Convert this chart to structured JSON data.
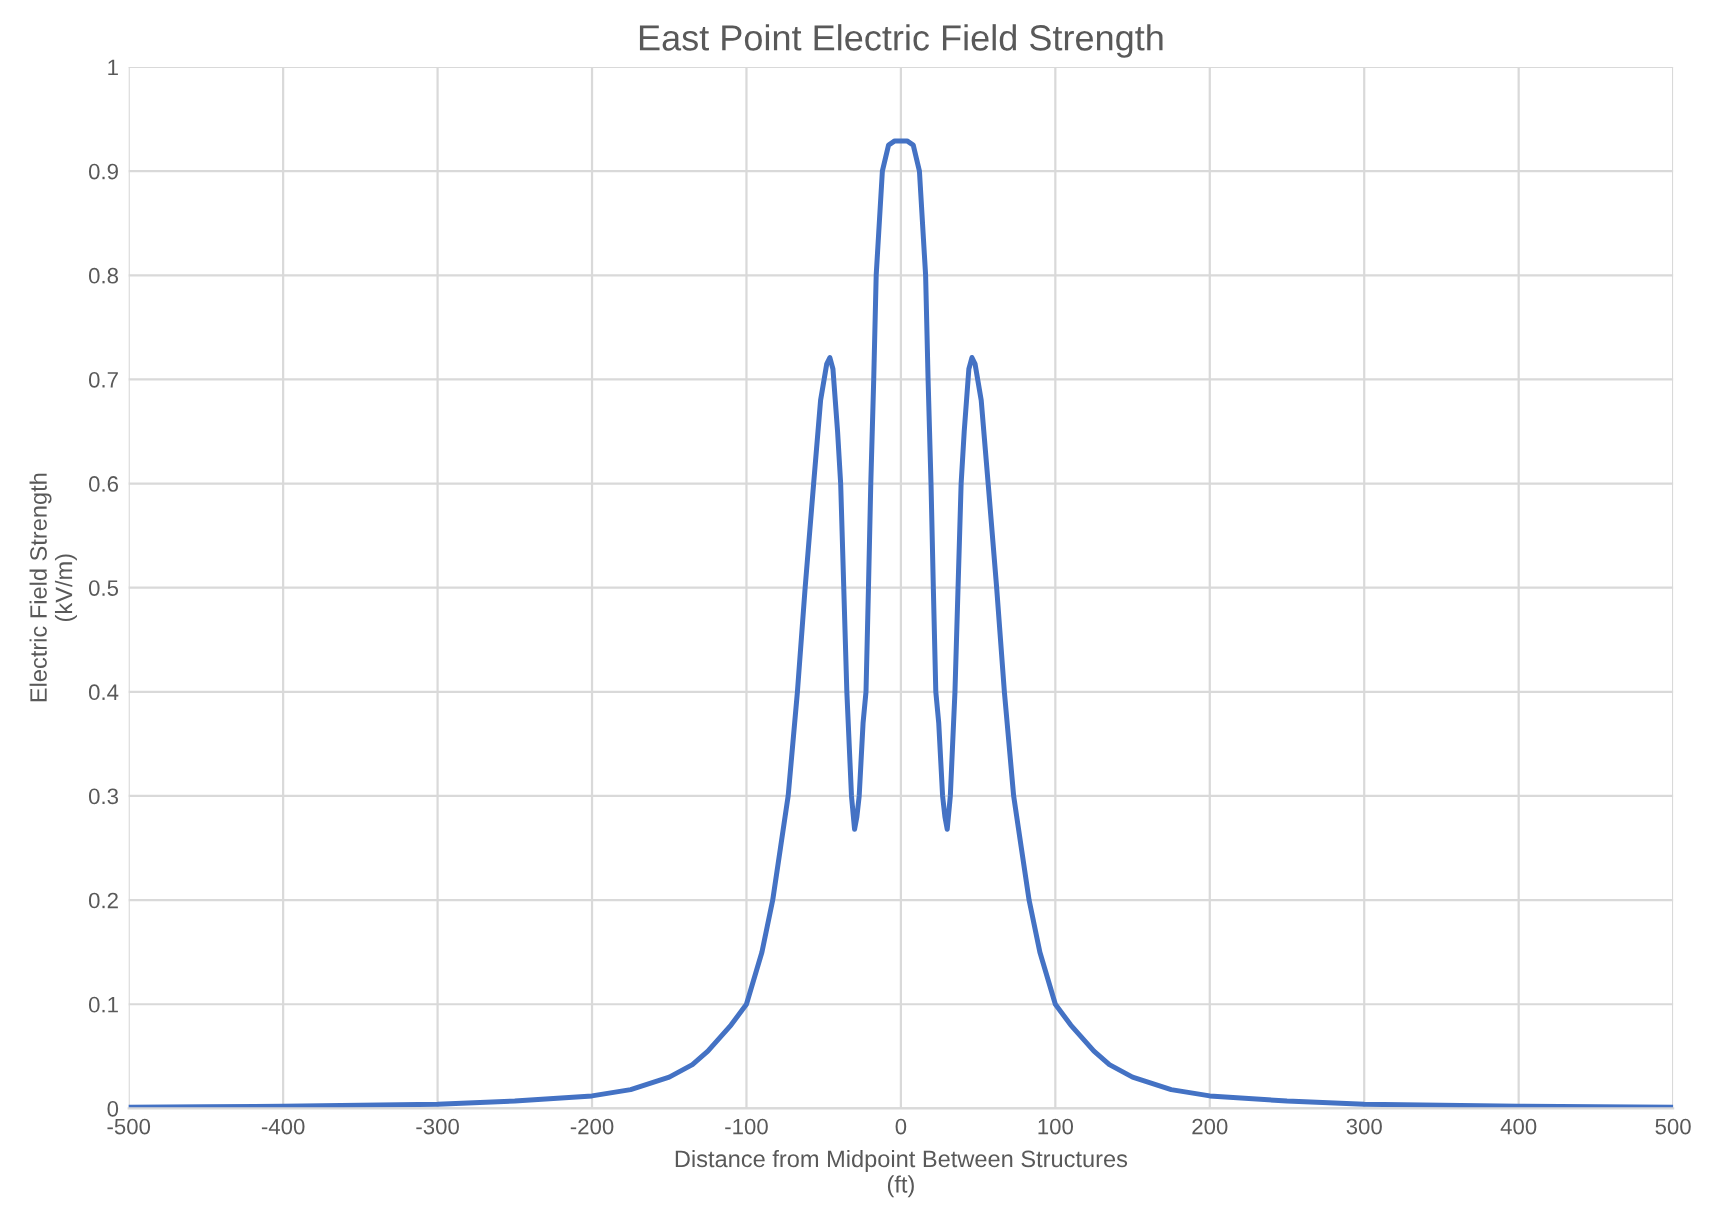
{
  "chart_data": {
    "type": "line",
    "title": "East Point Electric Field Strength",
    "xlabel": "Distance from Midpoint Between Structures\n(ft)",
    "ylabel": "Electric Field Strength\n(kV/m)",
    "x": [
      -500,
      -450,
      -400,
      -350,
      -300,
      -250,
      -200,
      -175,
      -150,
      -135,
      -125,
      -110,
      -100,
      -90,
      -83,
      -78,
      -73,
      -67,
      -62,
      -56.5,
      -52,
      -48,
      -46,
      -44,
      -41,
      -39,
      -35,
      -32,
      -30,
      -28.5,
      -27,
      -24.5,
      -22.6,
      -21,
      -19.5,
      -17.6,
      -16,
      -12,
      -8,
      -4,
      0,
      4,
      8,
      12,
      16,
      17.6,
      19.5,
      21,
      22.6,
      24.5,
      27,
      28.5,
      30,
      32,
      35,
      39,
      41,
      44,
      46,
      48,
      52,
      56.5,
      62,
      67,
      73,
      78,
      83,
      90,
      100,
      110,
      125,
      135,
      150,
      175,
      200,
      250,
      300,
      350,
      400,
      450,
      500
    ],
    "series": [
      {
        "color": "#4472c4",
        "values": [
          0.001,
          0.0015,
          0.002,
          0.003,
          0.004,
          0.007,
          0.012,
          0.018,
          0.03,
          0.042,
          0.055,
          0.08,
          0.1,
          0.15,
          0.2,
          0.25,
          0.3,
          0.4,
          0.5,
          0.6,
          0.68,
          0.715,
          0.721,
          0.71,
          0.65,
          0.6,
          0.4,
          0.3,
          0.268,
          0.28,
          0.3,
          0.37,
          0.4,
          0.5,
          0.6,
          0.7,
          0.8,
          0.9,
          0.925,
          0.929,
          0.929,
          0.929,
          0.925,
          0.9,
          0.8,
          0.7,
          0.6,
          0.5,
          0.4,
          0.37,
          0.3,
          0.28,
          0.268,
          0.3,
          0.4,
          0.6,
          0.65,
          0.71,
          0.721,
          0.715,
          0.68,
          0.6,
          0.5,
          0.4,
          0.3,
          0.25,
          0.2,
          0.15,
          0.1,
          0.08,
          0.055,
          0.042,
          0.03,
          0.018,
          0.012,
          0.007,
          0.004,
          0.003,
          0.002,
          0.0015,
          0.001
        ]
      }
    ],
    "xlim": [
      -500,
      500
    ],
    "xticks": [
      -500,
      -400,
      -300,
      -200,
      -100,
      0,
      100,
      200,
      300,
      400,
      500
    ],
    "ylim": [
      0,
      1
    ],
    "yticks": [
      0,
      0.1,
      0.2,
      0.3,
      0.4,
      0.5,
      0.6,
      0.7,
      0.8,
      0.9,
      1
    ],
    "grid": true,
    "legend": false,
    "marker": "none",
    "line_style": "solid"
  }
}
